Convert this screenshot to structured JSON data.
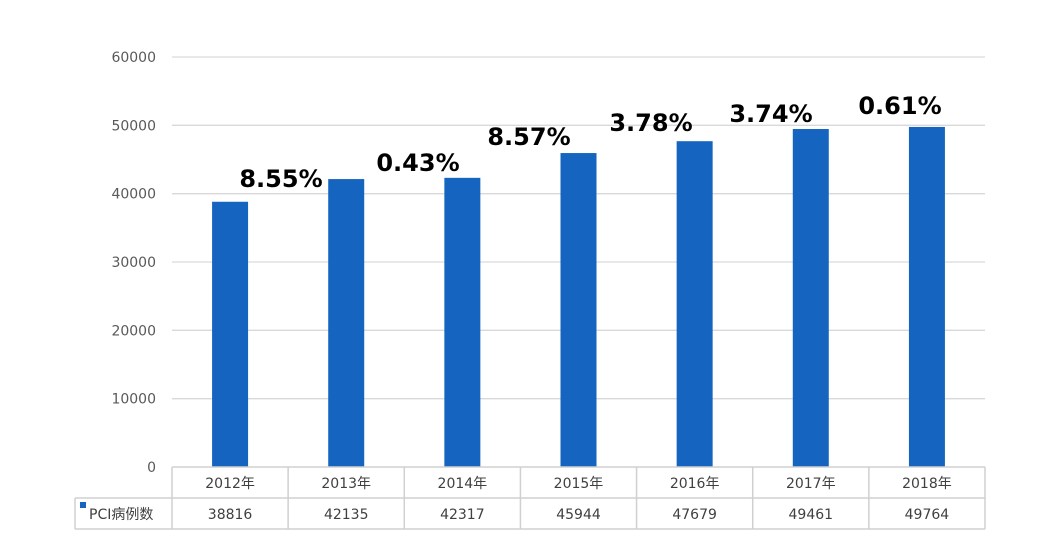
{
  "chart_data": {
    "type": "bar",
    "categories": [
      "2012年",
      "2013年",
      "2014年",
      "2015年",
      "2016年",
      "2017年",
      "2018年"
    ],
    "series": [
      {
        "name": "PCI病例数",
        "values": [
          38816,
          42135,
          42317,
          45944,
          47679,
          49461,
          49764
        ]
      }
    ],
    "growth_labels": [
      "8.55%",
      "0.43%",
      "8.57%",
      "3.78%",
      "3.74%",
      "0.61%"
    ],
    "ylim": [
      0,
      60000
    ],
    "yticks": [
      0,
      10000,
      20000,
      30000,
      40000,
      50000,
      60000
    ],
    "grid": true,
    "legend": "data-table",
    "data_table": true,
    "colors": {
      "bar": "#1565C0",
      "grid": "#D9D9D9"
    }
  }
}
